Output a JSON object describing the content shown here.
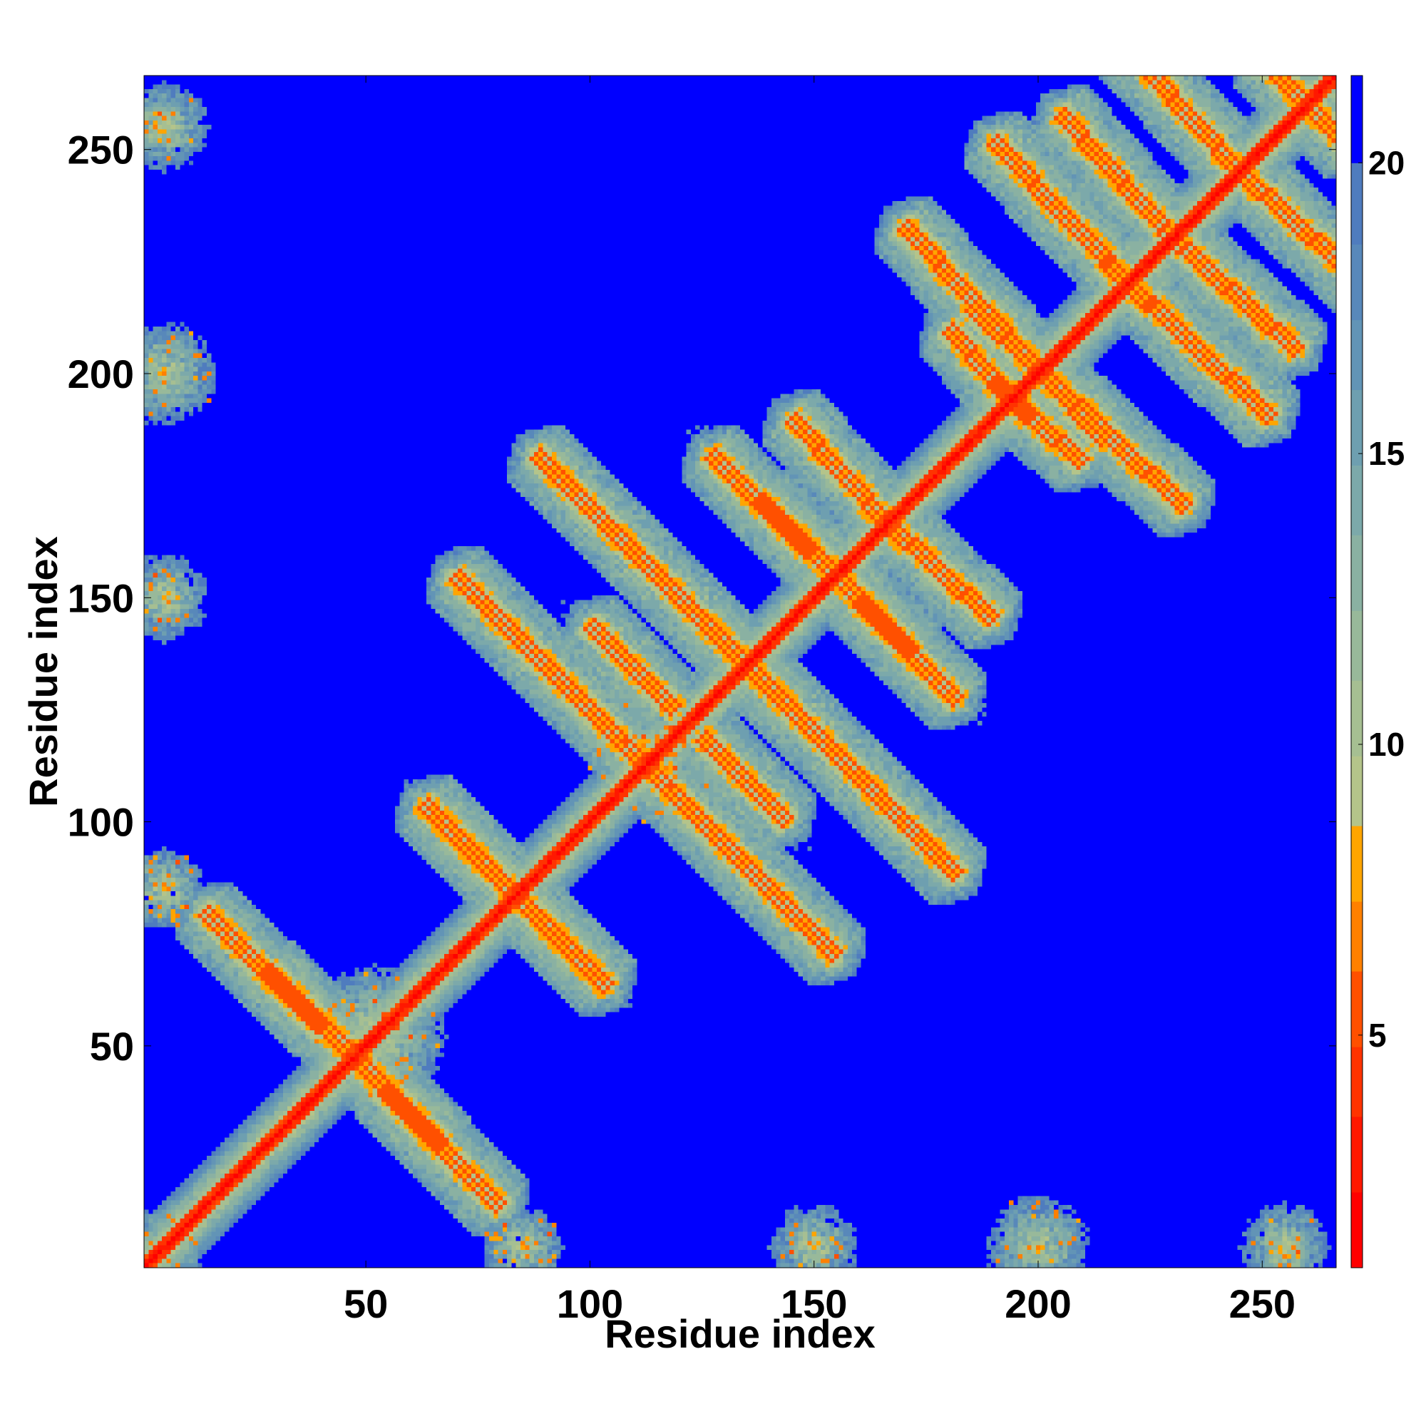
{
  "chart_data": {
    "type": "heatmap",
    "title": "",
    "xlabel": "Residue index",
    "ylabel": "Residue index",
    "n_residues": 266,
    "xlim": [
      1,
      266
    ],
    "ylim": [
      1,
      266
    ],
    "x_ticks": [
      {
        "value": 50,
        "label": "50"
      },
      {
        "value": 100,
        "label": "100"
      },
      {
        "value": 150,
        "label": "150"
      },
      {
        "value": 200,
        "label": "200"
      },
      {
        "value": 250,
        "label": "250"
      }
    ],
    "y_ticks": [
      {
        "value": 50,
        "label": "50"
      },
      {
        "value": 100,
        "label": "100"
      },
      {
        "value": 150,
        "label": "150"
      },
      {
        "value": 200,
        "label": "200"
      },
      {
        "value": 250,
        "label": "250"
      }
    ],
    "colorbar": {
      "min": 1,
      "max": 21.5,
      "ticks": [
        {
          "value": 5,
          "label": "5"
        },
        {
          "value": 10,
          "label": "10"
        },
        {
          "value": 15,
          "label": "15"
        },
        {
          "value": 20,
          "label": "20"
        }
      ],
      "levels": [
        {
          "from": 1,
          "to": 2.3,
          "color": "#ff0000"
        },
        {
          "from": 2.3,
          "to": 3.6,
          "color": "#ff1800"
        },
        {
          "from": 3.6,
          "to": 4.8,
          "color": "#ff3300"
        },
        {
          "from": 4.8,
          "to": 6.1,
          "color": "#ff5000"
        },
        {
          "from": 6.1,
          "to": 7.3,
          "color": "#ff8000"
        },
        {
          "from": 7.3,
          "to": 8.6,
          "color": "#ffa500"
        },
        {
          "from": 8.6,
          "to": 9.8,
          "color": "#b4c48a"
        },
        {
          "from": 9.8,
          "to": 11.1,
          "color": "#a6bf92"
        },
        {
          "from": 11.1,
          "to": 12.3,
          "color": "#98b99a"
        },
        {
          "from": 12.3,
          "to": 13.6,
          "color": "#8ab1a2"
        },
        {
          "from": 13.6,
          "to": 14.8,
          "color": "#7ca9aa"
        },
        {
          "from": 14.8,
          "to": 16.1,
          "color": "#6e9fb0"
        },
        {
          "from": 16.1,
          "to": 17.3,
          "color": "#6294b6"
        },
        {
          "from": 17.3,
          "to": 18.6,
          "color": "#5888ba"
        },
        {
          "from": 18.6,
          "to": 20.0,
          "color": "#4f7cbe"
        },
        {
          "from": 20.0,
          "to": 21.5,
          "color": "#0000ff"
        }
      ]
    },
    "background_value": 21,
    "background_color": "#0000ff",
    "features": [
      {
        "kind": "main-diagonal",
        "from": 1,
        "to": 266
      },
      {
        "kind": "antiparallel",
        "center": [
          50,
          80
        ],
        "span": [
          [
            14,
            80
          ],
          [
            67,
            28
          ]
        ]
      },
      {
        "kind": "antiparallel",
        "center": [
          90,
          80
        ],
        "span": [
          [
            65,
            102
          ],
          [
            104,
            63
          ]
        ]
      },
      {
        "kind": "antiparallel",
        "center": [
          91,
          134
        ],
        "span": [
          [
            70,
            155
          ],
          [
            112,
            113
          ]
        ]
      },
      {
        "kind": "antiparallel",
        "center": [
          124,
          144
        ],
        "span": [
          [
            88,
            182
          ],
          [
            144,
            126
          ]
        ]
      },
      {
        "kind": "antiparallel",
        "center": [
          134,
          110
        ],
        "span": [
          [
            125,
            119
          ],
          [
            144,
            100
          ]
        ]
      },
      {
        "kind": "antiparallel",
        "center": [
          162,
          148
        ],
        "span": [
          [
            127,
            182
          ],
          [
            172,
            138
          ]
        ]
      },
      {
        "kind": "antiparallel",
        "center": [
          156,
          178
        ],
        "span": [
          [
            145,
            190
          ],
          [
            168,
            165
          ]
        ]
      },
      {
        "kind": "antiparallel",
        "center": [
          190,
          200
        ],
        "span": [
          [
            180,
            210
          ],
          [
            198,
            190
          ]
        ]
      },
      {
        "kind": "antiparallel",
        "center": [
          200,
          200
        ],
        "span": [
          [
            170,
            233
          ],
          [
            215,
            185
          ]
        ]
      },
      {
        "kind": "antiparallel",
        "center": [
          210,
          230
        ],
        "span": [
          [
            190,
            252
          ],
          [
            225,
            215
          ]
        ]
      },
      {
        "kind": "antiparallel",
        "center": [
          240,
          220
        ],
        "span": [
          [
            228,
            232
          ],
          [
            258,
            205
          ]
        ]
      },
      {
        "kind": "antiparallel",
        "center": [
          230,
          262
        ],
        "span": [
          [
            215,
            278
          ],
          [
            245,
            245
          ]
        ]
      },
      {
        "kind": "antiparallel",
        "center": [
          260,
          260
        ],
        "span": [
          [
            250,
            270
          ],
          [
            266,
            254
          ]
        ]
      },
      {
        "kind": "contact-cluster",
        "center": [
          115,
          113
        ],
        "radius": 14
      },
      {
        "kind": "contact-cluster",
        "center": [
          52,
          52
        ],
        "radius": 16
      },
      {
        "kind": "contact-cluster",
        "center": [
          5,
          255
        ],
        "radius": 9
      },
      {
        "kind": "contact-cluster",
        "center": [
          5,
          200
        ],
        "radius": 11
      },
      {
        "kind": "contact-cluster",
        "center": [
          5,
          150
        ],
        "radius": 10
      },
      {
        "kind": "contact-cluster",
        "center": [
          5,
          85
        ],
        "radius": 9
      },
      {
        "kind": "contact-cluster",
        "center": [
          200,
          5
        ],
        "radius": 12
      },
      {
        "kind": "contact-cluster",
        "center": [
          255,
          5
        ],
        "radius": 10
      },
      {
        "kind": "contact-cluster",
        "center": [
          150,
          5
        ],
        "radius": 9
      },
      {
        "kind": "contact-cluster",
        "center": [
          85,
          5
        ],
        "radius": 9
      },
      {
        "kind": "contact-cluster",
        "center": [
          5,
          5
        ],
        "radius": 9
      }
    ]
  }
}
